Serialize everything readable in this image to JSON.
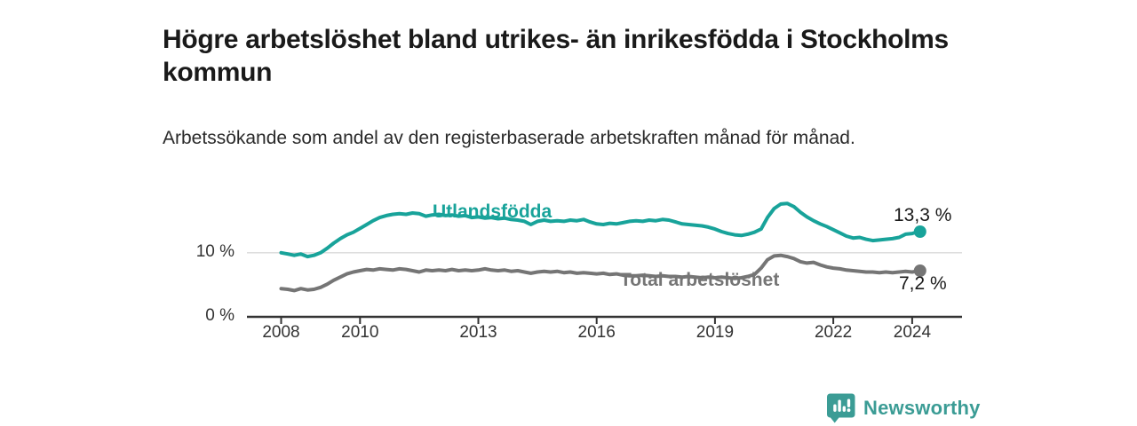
{
  "header": {
    "title": "Högre arbetslöshet bland utrikes- än inrikesfödda i Stockholms kommun",
    "subtitle": "Arbetssökande som andel av den registerbaserade arbetskraften månad för månad."
  },
  "chart_data": {
    "type": "line",
    "title": "Högre arbetslöshet bland utrikes- än inrikesfödda i Stockholms kommun",
    "subtitle": "Arbetssökande som andel av den registerbaserade arbetskraften månad för månad.",
    "xlabel": "",
    "ylabel": "",
    "unit": "%",
    "grid": "single horizontal gridline at 10 %",
    "legend_position": "inline labels on lines",
    "xlim": [
      2007.3,
      2025.3
    ],
    "ylim": [
      0,
      18.5
    ],
    "x_ticks": [
      2008,
      2010,
      2013,
      2016,
      2019,
      2022,
      2024
    ],
    "y_axis": {
      "ticks": [
        {
          "value": 10,
          "label": "10 %"
        },
        {
          "value": 0,
          "label": "0 %"
        }
      ]
    },
    "series": [
      {
        "name": "Utlandsfödda",
        "color": "#18a39a",
        "end_value": 13.3,
        "end_label": "13,3 %",
        "points": [
          [
            2008.0,
            10.0
          ],
          [
            2008.17,
            9.8
          ],
          [
            2008.33,
            9.6
          ],
          [
            2008.5,
            9.8
          ],
          [
            2008.67,
            9.4
          ],
          [
            2008.83,
            9.6
          ],
          [
            2009.0,
            10.0
          ],
          [
            2009.17,
            10.7
          ],
          [
            2009.33,
            11.5
          ],
          [
            2009.5,
            12.2
          ],
          [
            2009.67,
            12.8
          ],
          [
            2009.83,
            13.2
          ],
          [
            2010.0,
            13.8
          ],
          [
            2010.17,
            14.4
          ],
          [
            2010.33,
            15.0
          ],
          [
            2010.5,
            15.5
          ],
          [
            2010.67,
            15.8
          ],
          [
            2010.83,
            16.0
          ],
          [
            2011.0,
            16.1
          ],
          [
            2011.17,
            16.0
          ],
          [
            2011.33,
            16.2
          ],
          [
            2011.5,
            16.1
          ],
          [
            2011.67,
            15.7
          ],
          [
            2011.83,
            15.9
          ],
          [
            2012.0,
            16.0
          ],
          [
            2012.17,
            15.8
          ],
          [
            2012.33,
            15.9
          ],
          [
            2012.5,
            15.7
          ],
          [
            2012.67,
            15.8
          ],
          [
            2012.83,
            15.5
          ],
          [
            2013.0,
            15.6
          ],
          [
            2013.17,
            15.4
          ],
          [
            2013.33,
            15.5
          ],
          [
            2013.5,
            15.3
          ],
          [
            2013.67,
            15.4
          ],
          [
            2013.83,
            15.2
          ],
          [
            2014.0,
            15.1
          ],
          [
            2014.17,
            14.9
          ],
          [
            2014.33,
            14.4
          ],
          [
            2014.5,
            14.9
          ],
          [
            2014.67,
            15.1
          ],
          [
            2014.83,
            14.9
          ],
          [
            2015.0,
            15.0
          ],
          [
            2015.17,
            14.9
          ],
          [
            2015.33,
            15.1
          ],
          [
            2015.5,
            15.0
          ],
          [
            2015.67,
            15.2
          ],
          [
            2015.83,
            14.8
          ],
          [
            2016.0,
            14.5
          ],
          [
            2016.17,
            14.4
          ],
          [
            2016.33,
            14.6
          ],
          [
            2016.5,
            14.5
          ],
          [
            2016.67,
            14.7
          ],
          [
            2016.83,
            14.9
          ],
          [
            2017.0,
            15.0
          ],
          [
            2017.17,
            14.9
          ],
          [
            2017.33,
            15.1
          ],
          [
            2017.5,
            15.0
          ],
          [
            2017.67,
            15.2
          ],
          [
            2017.83,
            15.1
          ],
          [
            2018.0,
            14.8
          ],
          [
            2018.17,
            14.5
          ],
          [
            2018.33,
            14.4
          ],
          [
            2018.5,
            14.3
          ],
          [
            2018.67,
            14.2
          ],
          [
            2018.83,
            14.0
          ],
          [
            2019.0,
            13.7
          ],
          [
            2019.17,
            13.3
          ],
          [
            2019.33,
            13.0
          ],
          [
            2019.5,
            12.8
          ],
          [
            2019.67,
            12.7
          ],
          [
            2019.83,
            12.9
          ],
          [
            2020.0,
            13.2
          ],
          [
            2020.17,
            13.7
          ],
          [
            2020.33,
            15.5
          ],
          [
            2020.5,
            16.9
          ],
          [
            2020.67,
            17.6
          ],
          [
            2020.83,
            17.7
          ],
          [
            2021.0,
            17.2
          ],
          [
            2021.17,
            16.3
          ],
          [
            2021.33,
            15.6
          ],
          [
            2021.5,
            15.0
          ],
          [
            2021.67,
            14.5
          ],
          [
            2021.83,
            14.1
          ],
          [
            2022.0,
            13.6
          ],
          [
            2022.17,
            13.1
          ],
          [
            2022.33,
            12.6
          ],
          [
            2022.5,
            12.3
          ],
          [
            2022.67,
            12.4
          ],
          [
            2022.83,
            12.1
          ],
          [
            2023.0,
            11.9
          ],
          [
            2023.17,
            12.0
          ],
          [
            2023.33,
            12.1
          ],
          [
            2023.5,
            12.2
          ],
          [
            2023.67,
            12.4
          ],
          [
            2023.83,
            12.9
          ],
          [
            2024.0,
            13.0
          ],
          [
            2024.1,
            13.2
          ],
          [
            2024.2,
            13.3
          ]
        ]
      },
      {
        "name": "Total arbetslöshet",
        "color": "#757575",
        "end_value": 7.2,
        "end_label": "7,2 %",
        "points": [
          [
            2008.0,
            4.4
          ],
          [
            2008.17,
            4.3
          ],
          [
            2008.33,
            4.1
          ],
          [
            2008.5,
            4.4
          ],
          [
            2008.67,
            4.2
          ],
          [
            2008.83,
            4.3
          ],
          [
            2009.0,
            4.6
          ],
          [
            2009.17,
            5.1
          ],
          [
            2009.33,
            5.7
          ],
          [
            2009.5,
            6.2
          ],
          [
            2009.67,
            6.7
          ],
          [
            2009.83,
            7.0
          ],
          [
            2010.0,
            7.2
          ],
          [
            2010.17,
            7.4
          ],
          [
            2010.33,
            7.3
          ],
          [
            2010.5,
            7.5
          ],
          [
            2010.67,
            7.4
          ],
          [
            2010.83,
            7.3
          ],
          [
            2011.0,
            7.5
          ],
          [
            2011.17,
            7.4
          ],
          [
            2011.33,
            7.2
          ],
          [
            2011.5,
            7.0
          ],
          [
            2011.67,
            7.3
          ],
          [
            2011.83,
            7.2
          ],
          [
            2012.0,
            7.3
          ],
          [
            2012.17,
            7.2
          ],
          [
            2012.33,
            7.4
          ],
          [
            2012.5,
            7.2
          ],
          [
            2012.67,
            7.3
          ],
          [
            2012.83,
            7.2
          ],
          [
            2013.0,
            7.3
          ],
          [
            2013.17,
            7.5
          ],
          [
            2013.33,
            7.3
          ],
          [
            2013.5,
            7.2
          ],
          [
            2013.67,
            7.3
          ],
          [
            2013.83,
            7.1
          ],
          [
            2014.0,
            7.2
          ],
          [
            2014.17,
            7.0
          ],
          [
            2014.33,
            6.8
          ],
          [
            2014.5,
            7.0
          ],
          [
            2014.67,
            7.1
          ],
          [
            2014.83,
            7.0
          ],
          [
            2015.0,
            7.1
          ],
          [
            2015.17,
            6.9
          ],
          [
            2015.33,
            7.0
          ],
          [
            2015.5,
            6.8
          ],
          [
            2015.67,
            6.9
          ],
          [
            2015.83,
            6.8
          ],
          [
            2016.0,
            6.7
          ],
          [
            2016.17,
            6.8
          ],
          [
            2016.33,
            6.6
          ],
          [
            2016.5,
            6.7
          ],
          [
            2016.67,
            6.5
          ],
          [
            2016.83,
            6.4
          ],
          [
            2017.0,
            6.4
          ],
          [
            2017.17,
            6.5
          ],
          [
            2017.33,
            6.4
          ],
          [
            2017.5,
            6.3
          ],
          [
            2017.67,
            6.4
          ],
          [
            2017.83,
            6.3
          ],
          [
            2018.0,
            6.3
          ],
          [
            2018.17,
            6.2
          ],
          [
            2018.33,
            6.3
          ],
          [
            2018.5,
            6.2
          ],
          [
            2018.67,
            6.1
          ],
          [
            2018.83,
            6.2
          ],
          [
            2019.0,
            6.1
          ],
          [
            2019.17,
            6.2
          ],
          [
            2019.33,
            6.1
          ],
          [
            2019.5,
            6.0
          ],
          [
            2019.67,
            6.1
          ],
          [
            2019.83,
            6.3
          ],
          [
            2020.0,
            6.6
          ],
          [
            2020.17,
            7.6
          ],
          [
            2020.33,
            8.9
          ],
          [
            2020.5,
            9.5
          ],
          [
            2020.67,
            9.6
          ],
          [
            2020.83,
            9.4
          ],
          [
            2021.0,
            9.1
          ],
          [
            2021.17,
            8.6
          ],
          [
            2021.33,
            8.4
          ],
          [
            2021.5,
            8.5
          ],
          [
            2021.67,
            8.1
          ],
          [
            2021.83,
            7.8
          ],
          [
            2022.0,
            7.6
          ],
          [
            2022.17,
            7.5
          ],
          [
            2022.33,
            7.3
          ],
          [
            2022.5,
            7.2
          ],
          [
            2022.67,
            7.1
          ],
          [
            2022.83,
            7.0
          ],
          [
            2023.0,
            7.0
          ],
          [
            2023.17,
            6.9
          ],
          [
            2023.33,
            7.0
          ],
          [
            2023.5,
            6.9
          ],
          [
            2023.67,
            7.0
          ],
          [
            2023.83,
            7.1
          ],
          [
            2024.0,
            7.0
          ],
          [
            2024.1,
            7.1
          ],
          [
            2024.2,
            7.2
          ]
        ]
      }
    ]
  },
  "colors": {
    "accent_teal": "#18a39a",
    "series_gray": "#757575",
    "title_text": "#1a1a1a",
    "axis_text": "#333333",
    "gridline": "#d9d9d9",
    "axis_line": "#333333",
    "brand_teal": "#3b9c95",
    "background": "#ffffff"
  },
  "footer": {
    "brand": "Newsworthy",
    "logo_icon": "newsworthy-speech-bubble-bar-chart-icon"
  }
}
